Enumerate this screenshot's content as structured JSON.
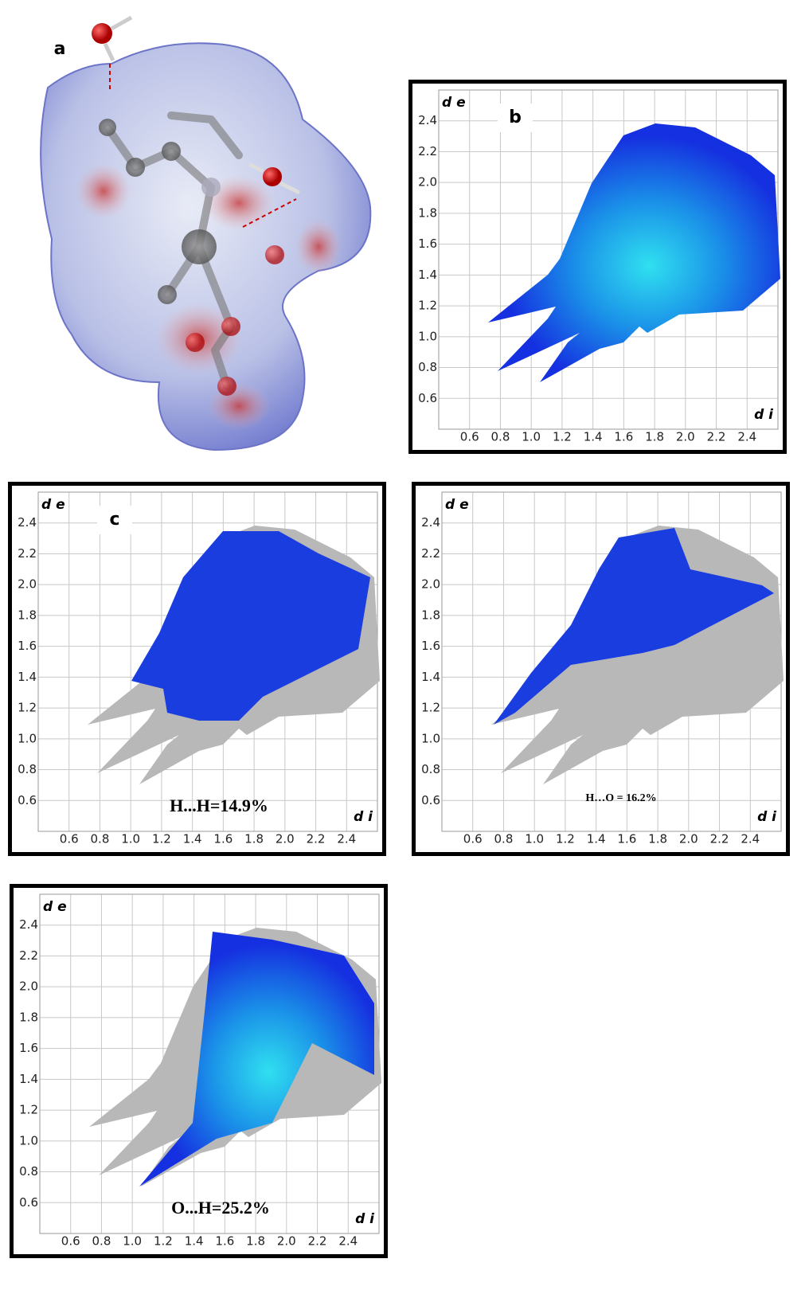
{
  "panel_a": {
    "label": "a"
  },
  "chart_data": [
    {
      "type": "fingerprint",
      "label": "b",
      "xlabel": "d i",
      "ylabel": "d e",
      "xlim": [
        0.4,
        2.6
      ],
      "ylim": [
        0.4,
        2.6
      ],
      "grid": true,
      "xticks": [
        0.6,
        0.8,
        {
          "value": 1,
          "label": "1.0"
        },
        1.2,
        1.4,
        1.6,
        1.8,
        {
          "value": 2,
          "label": "2.0"
        },
        2.2,
        2.4
      ],
      "yticks": [
        0.6,
        0.8,
        {
          "value": 1,
          "label": "1.0"
        },
        1.2,
        1.4,
        1.6,
        1.8,
        {
          "value": 2,
          "label": "2.0"
        },
        2.2,
        2.4
      ]
    },
    {
      "type": "fingerprint",
      "label": "c",
      "annotation": "H...H=14.9%",
      "xlabel": "d i",
      "ylabel": "d e",
      "xlim": [
        0.4,
        2.6
      ],
      "ylim": [
        0.4,
        2.6
      ],
      "grid": true,
      "xticks": [
        0.6,
        0.8,
        {
          "value": 1,
          "label": "1.0"
        },
        1.2,
        1.4,
        1.6,
        1.8,
        {
          "value": 2,
          "label": "2.0"
        },
        2.2,
        2.4
      ],
      "yticks": [
        0.6,
        0.8,
        {
          "value": 1,
          "label": "1.0"
        },
        1.2,
        1.4,
        1.6,
        1.8,
        {
          "value": 2,
          "label": "2.0"
        },
        2.2,
        2.4
      ]
    },
    {
      "type": "fingerprint",
      "annotation": "H…O = 16.2%",
      "xlabel": "d i",
      "ylabel": "d e",
      "xlim": [
        0.4,
        2.6
      ],
      "ylim": [
        0.4,
        2.6
      ],
      "grid": true,
      "xticks": [
        0.6,
        0.8,
        {
          "value": 1,
          "label": "1.0"
        },
        1.2,
        1.4,
        1.6,
        1.8,
        {
          "value": 2,
          "label": "2.0"
        },
        2.2,
        2.4
      ],
      "yticks": [
        0.6,
        0.8,
        {
          "value": 1,
          "label": "1.0"
        },
        1.2,
        1.4,
        1.6,
        1.8,
        {
          "value": 2,
          "label": "2.0"
        },
        2.2,
        2.4
      ]
    },
    {
      "type": "fingerprint",
      "annotation": "O...H=25.2%",
      "xlabel": "d i",
      "ylabel": "d e",
      "xlim": [
        0.4,
        2.6
      ],
      "ylim": [
        0.4,
        2.6
      ],
      "grid": true,
      "xticks": [
        0.6,
        0.8,
        {
          "value": 1,
          "label": "1.0"
        },
        1.2,
        1.4,
        1.6,
        1.8,
        {
          "value": 2,
          "label": "2.0"
        },
        2.2,
        2.4
      ],
      "yticks": [
        0.6,
        0.8,
        {
          "value": 1,
          "label": "1.0"
        },
        1.2,
        1.4,
        1.6,
        1.8,
        {
          "value": 2,
          "label": "2.0"
        },
        2.2,
        2.4
      ]
    }
  ]
}
